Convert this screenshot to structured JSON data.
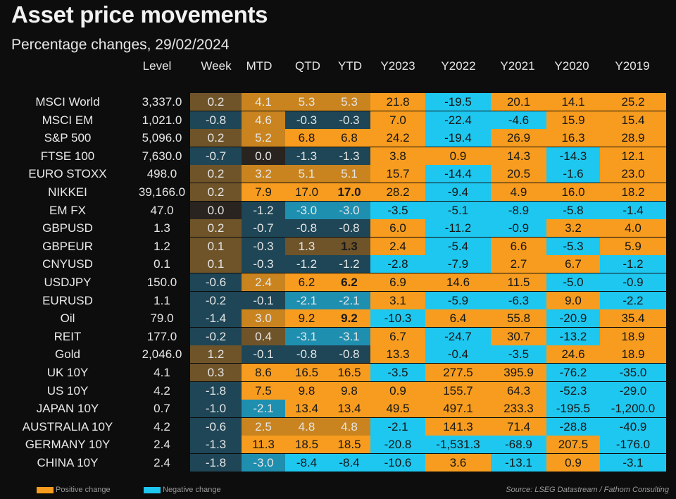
{
  "title": "Asset price movements",
  "subtitle": "Percentage changes, 29/02/2024",
  "legend": {
    "positive": "Positive change",
    "negative": "Negative change"
  },
  "source": "Source: LSEG Datastream / Fathom Consulting",
  "colors": {
    "positive_strong": "#f79c1e",
    "positive_mid": "#c9841f",
    "positive_weak": "#6f5429",
    "negative_strong": "#1ec7ef",
    "negative_mid": "#1f8fb0",
    "negative_weak": "#1e4656",
    "neutral": "#2a2420"
  },
  "chart_data": {
    "type": "table",
    "title": "Asset price movements",
    "subtitle": "Percentage changes, 29/02/2024",
    "columns": [
      "Level",
      "Week",
      "MTD",
      "QTD",
      "YTD",
      "Y2023",
      "Y2022",
      "Y2021",
      "Y2020",
      "Y2019"
    ],
    "rows": [
      {
        "label": "MSCI World",
        "values": [
          "3,337.0",
          "0.2",
          "4.1",
          "5.3",
          "5.3",
          "21.8",
          "-19.5",
          "20.1",
          "14.1",
          "25.2"
        ]
      },
      {
        "label": "MSCI EM",
        "values": [
          "1,021.0",
          "-0.8",
          "4.6",
          "-0.3",
          "-0.3",
          "7.0",
          "-22.4",
          "-4.6",
          "15.9",
          "15.4"
        ]
      },
      {
        "label": "S&P 500",
        "values": [
          "5,096.0",
          "0.2",
          "5.2",
          "6.8",
          "6.8",
          "24.2",
          "-19.4",
          "26.9",
          "16.3",
          "28.9"
        ]
      },
      {
        "label": "FTSE 100",
        "values": [
          "7,630.0",
          "-0.7",
          "0.0",
          "-1.3",
          "-1.3",
          "3.8",
          "0.9",
          "14.3",
          "-14.3",
          "12.1"
        ]
      },
      {
        "label": "EURO STOXX",
        "values": [
          "498.0",
          "0.2",
          "3.2",
          "5.1",
          "5.1",
          "15.7",
          "-14.4",
          "20.5",
          "-1.6",
          "23.0"
        ]
      },
      {
        "label": "NIKKEI",
        "values": [
          "39,166.0",
          "0.2",
          "7.9",
          "17.0",
          "17.0",
          "28.2",
          "-9.4",
          "4.9",
          "16.0",
          "18.2"
        ]
      },
      {
        "label": "EM FX",
        "values": [
          "47.0",
          "0.0",
          "-1.2",
          "-3.0",
          "-3.0",
          "-3.5",
          "-5.1",
          "-8.9",
          "-5.8",
          "-1.4"
        ]
      },
      {
        "label": "GBPUSD",
        "values": [
          "1.3",
          "0.2",
          "-0.7",
          "-0.8",
          "-0.8",
          "6.0",
          "-11.2",
          "-0.9",
          "3.2",
          "4.0"
        ]
      },
      {
        "label": "GBPEUR",
        "values": [
          "1.2",
          "0.1",
          "-0.3",
          "1.3",
          "1.3",
          "2.4",
          "-5.4",
          "6.6",
          "-5.3",
          "5.9"
        ]
      },
      {
        "label": "CNYUSD",
        "values": [
          "0.1",
          "0.1",
          "-0.3",
          "-1.2",
          "-1.2",
          "-2.8",
          "-7.9",
          "2.7",
          "6.7",
          "-1.2"
        ]
      },
      {
        "label": "USDJPY",
        "values": [
          "150.0",
          "-0.6",
          "2.4",
          "6.2",
          "6.2",
          "6.9",
          "14.6",
          "11.5",
          "-5.0",
          "-0.9"
        ]
      },
      {
        "label": "EURUSD",
        "values": [
          "1.1",
          "-0.2",
          "-0.1",
          "-2.1",
          "-2.1",
          "3.1",
          "-5.9",
          "-6.3",
          "9.0",
          "-2.2"
        ]
      },
      {
        "label": "Oil",
        "values": [
          "79.0",
          "-1.4",
          "3.0",
          "9.2",
          "9.2",
          "-10.3",
          "6.4",
          "55.8",
          "-20.9",
          "35.4"
        ]
      },
      {
        "label": "REIT",
        "values": [
          "177.0",
          "-0.2",
          "0.4",
          "-3.1",
          "-3.1",
          "6.7",
          "-24.7",
          "30.7",
          "-13.2",
          "18.9"
        ]
      },
      {
        "label": "Gold",
        "values": [
          "2,046.0",
          "1.2",
          "-0.1",
          "-0.8",
          "-0.8",
          "13.3",
          "-0.4",
          "-3.5",
          "24.6",
          "18.9"
        ]
      },
      {
        "label": "UK 10Y",
        "values": [
          "4.1",
          "0.3",
          "8.6",
          "16.5",
          "16.5",
          "-3.5",
          "277.5",
          "395.9",
          "-76.2",
          "-35.0"
        ]
      },
      {
        "label": "US 10Y",
        "values": [
          "4.2",
          "-1.8",
          "7.5",
          "9.8",
          "9.8",
          "0.9",
          "155.7",
          "64.3",
          "-52.3",
          "-29.0"
        ]
      },
      {
        "label": "JAPAN 10Y",
        "values": [
          "0.7",
          "-1.0",
          "-2.1",
          "13.4",
          "13.4",
          "49.5",
          "497.1",
          "233.3",
          "-195.5",
          "-1,200.0"
        ]
      },
      {
        "label": "AUSTRALIA 10Y",
        "values": [
          "4.2",
          "-0.6",
          "2.5",
          "4.8",
          "4.8",
          "-2.1",
          "141.3",
          "71.4",
          "-28.8",
          "-40.9"
        ]
      },
      {
        "label": "GERMANY 10Y",
        "values": [
          "2.4",
          "-1.3",
          "11.3",
          "18.5",
          "18.5",
          "-20.8",
          "-1,531.3",
          "-68.9",
          "207.5",
          "-176.0"
        ]
      },
      {
        "label": "CHINA 10Y",
        "values": [
          "2.4",
          "-1.8",
          "-3.0",
          "-8.4",
          "-8.4",
          "-10.6",
          "3.6",
          "-13.1",
          "0.9",
          "-3.1"
        ]
      }
    ],
    "bold_cells": [
      {
        "row": "NIKKEI",
        "column": "YTD"
      },
      {
        "row": "GBPEUR",
        "column": "YTD"
      },
      {
        "row": "USDJPY",
        "column": "YTD"
      },
      {
        "row": "Oil",
        "column": "YTD"
      }
    ]
  }
}
